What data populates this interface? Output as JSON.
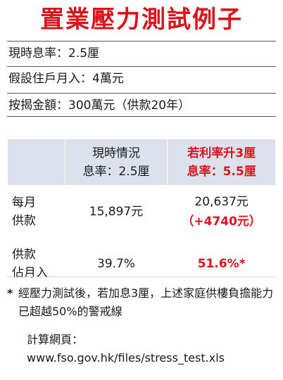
{
  "title": "置業壓力測試例子",
  "info": {
    "rate": "現時息率：2.5厘",
    "income": "假設住戶月入：4萬元",
    "mortgage": "按揭金額：300萬元（供款20年）"
  },
  "table": {
    "header": {
      "current_line1": "現時情況",
      "current_line2": "息率：2.5厘",
      "stress_line1": "若利率升3厘",
      "stress_line2": "息率：5.5厘"
    },
    "rows": [
      {
        "label_line1": "每月",
        "label_line2": "供款",
        "current": "15,897元",
        "stress": "20,637元",
        "stress_extra": "（+4740元）"
      },
      {
        "label_line1": "供款",
        "label_line2": "佔月入",
        "current": "39.7%",
        "stress": "51.6%*"
      }
    ]
  },
  "note": {
    "star": "*",
    "text": "經壓力測試後，若加息3厘，上述家庭供樓負擔能力已超越50%的警戒線"
  },
  "link": {
    "label": "計算網頁：",
    "url": "www.fso.gov.hk/files/stress_test.xls"
  }
}
